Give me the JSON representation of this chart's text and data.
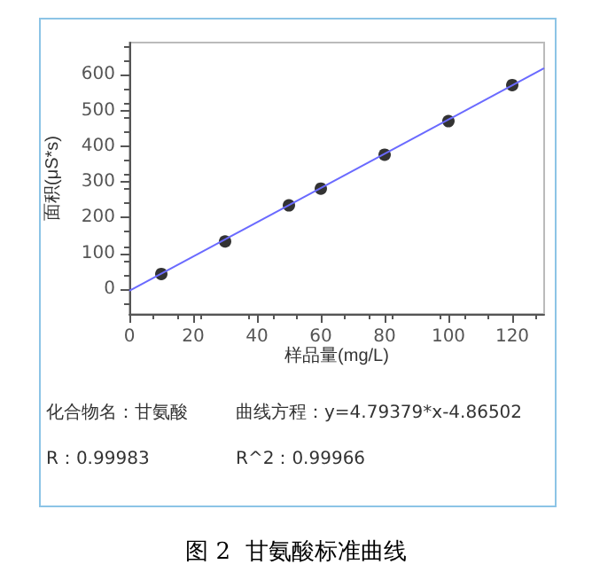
{
  "chart_data": {
    "type": "scatter",
    "title": "图 2  甘氨酸标准曲线",
    "xlabel": "样品量(mg/L)",
    "ylabel": "面积(μS*s)",
    "annotations": [
      "化合物名：甘氨酸",
      "曲线方程：y=4.79379*x-4.86502",
      "R：0.99983",
      "R^2：0.99966"
    ],
    "series": [
      {
        "color": "#000000",
        "x": [
          10,
          30,
          50,
          60,
          80,
          100,
          120
        ],
        "values": [
          42,
          133,
          234,
          281,
          376,
          470,
          571
        ]
      },
      {
        "type": "line",
        "color": "#6a6aff",
        "marker": "none",
        "x": [
          0,
          130
        ],
        "values": [
          -5,
          618
        ]
      }
    ],
    "marker": "circle",
    "line_style": "solid",
    "grid": false,
    "xlim": [
      0,
      130
    ],
    "xticks": [
      0,
      20,
      40,
      60,
      80,
      100,
      120
    ],
    "ylim": [
      -70,
      690
    ],
    "yticks": [
      0,
      100,
      200,
      300,
      400,
      500,
      600
    ]
  }
}
